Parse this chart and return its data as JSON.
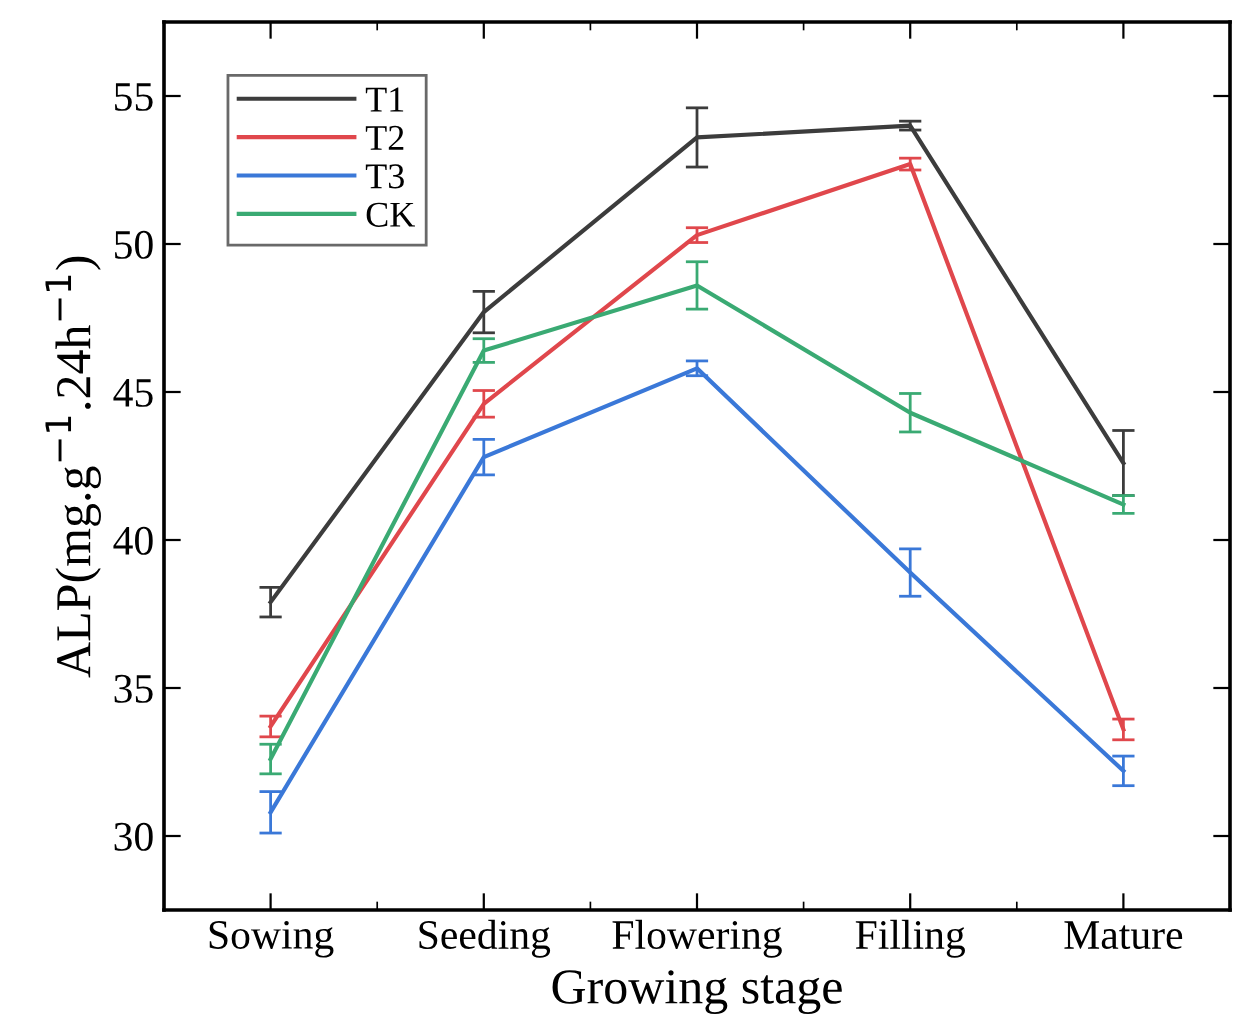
{
  "chart_data": {
    "type": "line",
    "xlabel": "Growing stage",
    "ylabel": "ALP(mg.g$^{−1}$.24h$^{−1}$)",
    "categories": [
      "Sowing",
      "Seeding",
      "Flowering",
      "Filling",
      "Mature"
    ],
    "series": [
      {
        "name": "T1",
        "color": "#3c3c3c",
        "values": [
          37.9,
          47.7,
          53.6,
          54.0,
          42.6
        ],
        "errors": [
          0.5,
          0.7,
          1.0,
          0.15,
          1.1
        ]
      },
      {
        "name": "T2",
        "color": "#e0474c",
        "values": [
          33.7,
          44.6,
          50.3,
          52.7,
          33.6
        ],
        "errors": [
          0.35,
          0.45,
          0.25,
          0.2,
          0.35
        ]
      },
      {
        "name": "T3",
        "color": "#3a78d8",
        "values": [
          30.8,
          42.8,
          45.8,
          38.9,
          32.2
        ],
        "errors": [
          0.7,
          0.6,
          0.25,
          0.8,
          0.5
        ]
      },
      {
        "name": "CK",
        "color": "#3aaa73",
        "values": [
          32.6,
          46.4,
          48.6,
          44.3,
          41.2
        ],
        "errors": [
          0.5,
          0.4,
          0.8,
          0.65,
          0.3
        ]
      }
    ],
    "ylim": [
      27.5,
      57.5
    ],
    "yticks": [
      30,
      35,
      40,
      45,
      50,
      55
    ],
    "grid": false,
    "legend": "top left",
    "marker": "none",
    "line_style": "solid"
  }
}
